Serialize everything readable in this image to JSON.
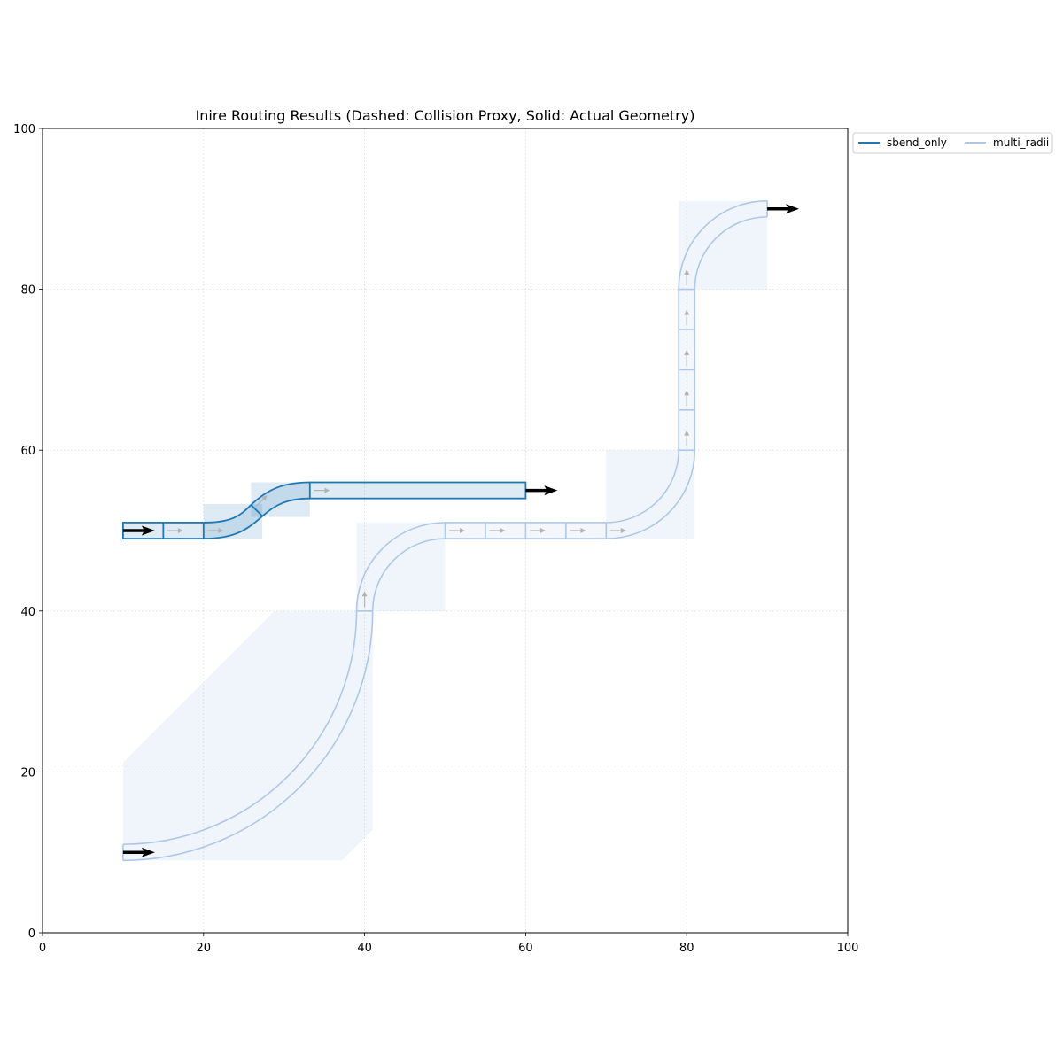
{
  "chart_data": {
    "type": "line",
    "title": "Inire Routing Results (Dashed: Collision Proxy, Solid: Actual Geometry)",
    "xlabel": "",
    "ylabel": "",
    "xlim": [
      0,
      100
    ],
    "ylim": [
      0,
      100
    ],
    "x_ticks": [
      0,
      20,
      40,
      60,
      80,
      100
    ],
    "y_ticks": [
      0,
      20,
      40,
      60,
      80,
      100
    ],
    "grid": true,
    "legend_placement": "outside-top-right",
    "waveguide_width": 2,
    "series": [
      {
        "name": "sbend_only",
        "color": "#1f77b4",
        "centerline": [
          {
            "x": 10,
            "y": 50
          },
          {
            "x": 15,
            "y": 50
          },
          {
            "x": 20,
            "y": 50
          },
          {
            "x": 23,
            "y": 50.5
          },
          {
            "x": 26.6,
            "y": 52.5
          },
          {
            "x": 30,
            "y": 54.5
          },
          {
            "x": 33.2,
            "y": 55
          },
          {
            "x": 60,
            "y": 55
          }
        ],
        "segment_boundaries_x": [
          15,
          20
        ],
        "sbend_joint": {
          "x": 26.6,
          "y": 52.5
        },
        "straight_end_x": 33.2,
        "proxy_boxes": [
          {
            "x0": 20,
            "y0": 49,
            "x1": 27.3,
            "y1": 53.3
          },
          {
            "x0": 25.9,
            "y0": 51.7,
            "x1": 33.2,
            "y1": 56
          }
        ],
        "start_arrow": {
          "x": 10,
          "y": 50
        },
        "end_arrow": {
          "x": 60,
          "y": 55
        },
        "direction_arrows": [
          {
            "x": 15.5,
            "y": 50,
            "dir": "right"
          },
          {
            "x": 20.5,
            "y": 50,
            "dir": "right"
          },
          {
            "x": 26.5,
            "y": 53,
            "dir": "up-right"
          },
          {
            "x": 33.7,
            "y": 55,
            "dir": "right"
          }
        ]
      },
      {
        "name": "multi_radii",
        "color": "#aec7e8",
        "centerline": [
          {
            "x": 10,
            "y": 10
          },
          {
            "x": 40,
            "y": 40
          },
          {
            "x": 50,
            "y": 50
          },
          {
            "x": 70,
            "y": 50
          },
          {
            "x": 80,
            "y": 60
          },
          {
            "x": 80,
            "y": 80
          },
          {
            "x": 90,
            "y": 90
          }
        ],
        "arcs": [
          {
            "center_x": 10,
            "center_y": 40,
            "radius": 30,
            "from": "start",
            "to": "(40,40)"
          },
          {
            "center_x": 50,
            "center_y": 40,
            "radius": 10,
            "from": "(40,40)",
            "to": "(50,50)"
          },
          {
            "center_x": 70,
            "center_y": 60,
            "radius": 10,
            "from": "(70,50)",
            "to": "(80,60)"
          },
          {
            "center_x": 90,
            "center_y": 80,
            "radius": 10,
            "from": "(80,80)",
            "to": "(90,90)"
          }
        ],
        "horizontal_segment_boundaries_x": [
          50,
          55,
          60,
          65,
          70
        ],
        "vertical_segment_boundaries_y": [
          60,
          65,
          70,
          75,
          80
        ],
        "proxy_polygon_big": [
          {
            "x": 10,
            "y": 21.2
          },
          {
            "x": 28.8,
            "y": 40
          },
          {
            "x": 41,
            "y": 40
          },
          {
            "x": 41,
            "y": 12.8
          },
          {
            "x": 37.2,
            "y": 9
          },
          {
            "x": 10,
            "y": 9
          }
        ],
        "proxy_boxes": [
          {
            "x0": 39,
            "y0": 40,
            "x1": 50,
            "y1": 51
          },
          {
            "x0": 70,
            "y0": 49,
            "x1": 81,
            "y1": 60
          },
          {
            "x0": 79,
            "y0": 80,
            "x1": 90,
            "y1": 91
          }
        ],
        "start_arrow": {
          "x": 10,
          "y": 10
        },
        "end_arrow": {
          "x": 90,
          "y": 90
        },
        "direction_arrows": [
          {
            "x": 40,
            "y": 40.5,
            "dir": "up"
          },
          {
            "x": 50.5,
            "y": 50,
            "dir": "right"
          },
          {
            "x": 55.5,
            "y": 50,
            "dir": "right"
          },
          {
            "x": 60.5,
            "y": 50,
            "dir": "right"
          },
          {
            "x": 65.5,
            "y": 50,
            "dir": "right"
          },
          {
            "x": 70.5,
            "y": 50,
            "dir": "right"
          },
          {
            "x": 80,
            "y": 60.5,
            "dir": "up"
          },
          {
            "x": 80,
            "y": 65.5,
            "dir": "up"
          },
          {
            "x": 80,
            "y": 70.5,
            "dir": "up"
          },
          {
            "x": 80,
            "y": 75.5,
            "dir": "up"
          },
          {
            "x": 80,
            "y": 80.5,
            "dir": "up"
          }
        ]
      }
    ]
  }
}
